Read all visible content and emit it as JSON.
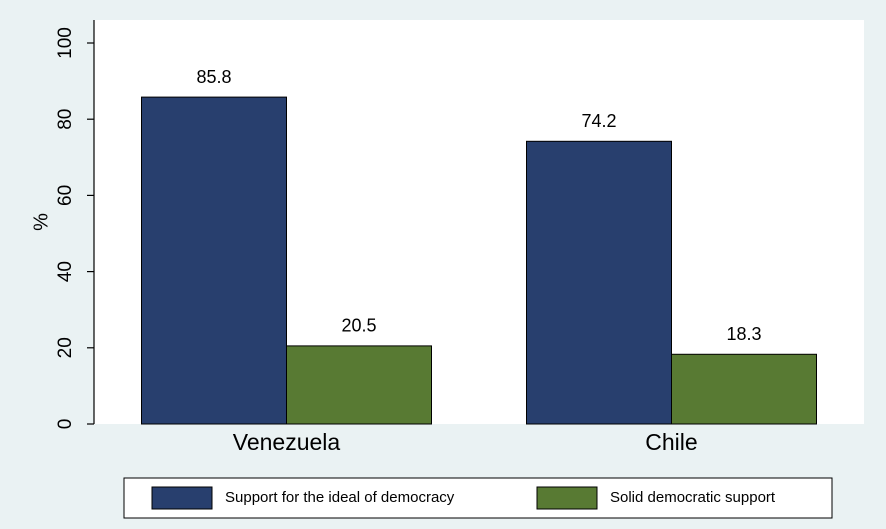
{
  "chart_data": {
    "type": "bar",
    "categories": [
      "Venezuela",
      "Chile"
    ],
    "series": [
      {
        "name": "Support for the ideal of democracy",
        "color": "#283f6e",
        "values": [
          85.8,
          74.2
        ]
      },
      {
        "name": "Solid democratic support",
        "color": "#587a33",
        "values": [
          20.5,
          18.3
        ]
      }
    ],
    "y_label": "%",
    "ylim": [
      0,
      100
    ],
    "yticks": [
      0,
      20,
      40,
      60,
      80,
      100
    ],
    "value_labels": true,
    "legend": "bottom",
    "grid": false
  }
}
